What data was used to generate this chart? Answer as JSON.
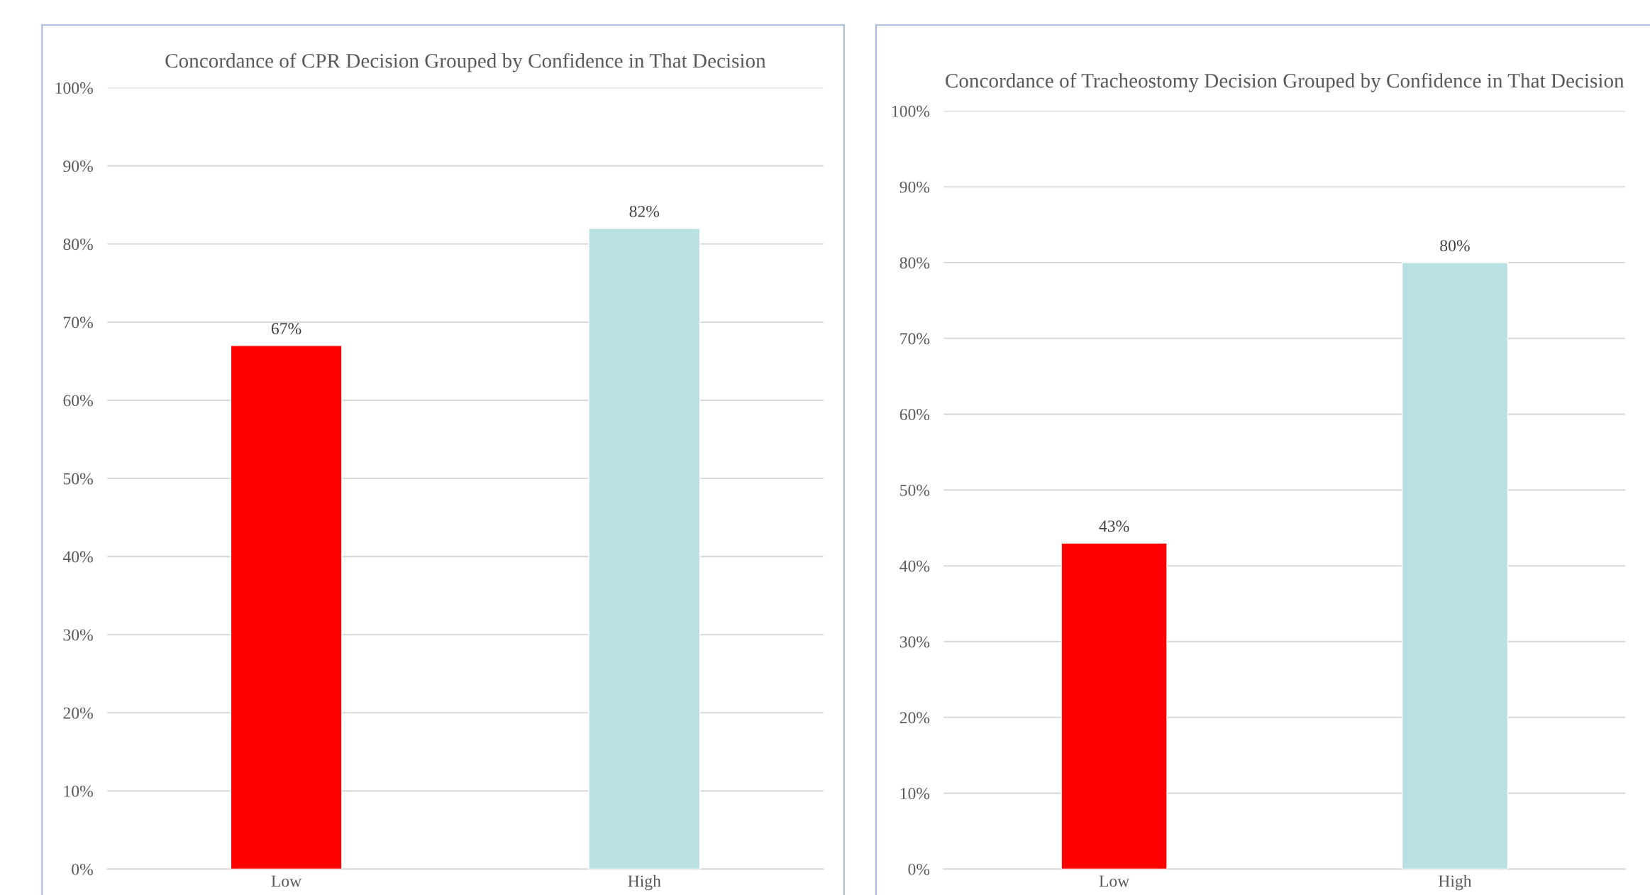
{
  "chart_data": [
    {
      "type": "bar",
      "title": "Concordance of CPR Decision Grouped by Confidence in That Decision",
      "categories": [
        "Low",
        "High"
      ],
      "values": [
        67,
        82
      ],
      "colors": [
        "#ff0000",
        "#b9e0e3"
      ],
      "value_labels": [
        "67%",
        "82%"
      ],
      "ylim": [
        0,
        100
      ],
      "yticks": [
        {
          "value": 0,
          "label": "0%"
        },
        {
          "value": 10,
          "label": "10%"
        },
        {
          "value": 20,
          "label": "20%"
        },
        {
          "value": 30,
          "label": "30%"
        },
        {
          "value": 40,
          "label": "40%"
        },
        {
          "value": 50,
          "label": "50%"
        },
        {
          "value": 60,
          "label": "60%"
        },
        {
          "value": 70,
          "label": "70%"
        },
        {
          "value": 80,
          "label": "80%"
        },
        {
          "value": 90,
          "label": "90%"
        },
        {
          "value": 100,
          "label": "100%"
        }
      ],
      "grid": "y",
      "legend": false
    },
    {
      "type": "bar",
      "title": "Concordance of Tracheostomy Decision Grouped by Confidence in That Decision",
      "categories": [
        "Low",
        "High"
      ],
      "values": [
        43,
        80
      ],
      "colors": [
        "#ff0000",
        "#b9e0e3"
      ],
      "value_labels": [
        "43%",
        "80%"
      ],
      "ylim": [
        0,
        100
      ],
      "yticks": [
        {
          "value": 0,
          "label": "0%"
        },
        {
          "value": 10,
          "label": "10%"
        },
        {
          "value": 20,
          "label": "20%"
        },
        {
          "value": 30,
          "label": "30%"
        },
        {
          "value": 40,
          "label": "40%"
        },
        {
          "value": 50,
          "label": "50%"
        },
        {
          "value": 60,
          "label": "60%"
        },
        {
          "value": 70,
          "label": "70%"
        },
        {
          "value": 80,
          "label": "80%"
        },
        {
          "value": 90,
          "label": "90%"
        },
        {
          "value": 100,
          "label": "100%"
        }
      ],
      "grid": "y",
      "legend": false
    }
  ]
}
